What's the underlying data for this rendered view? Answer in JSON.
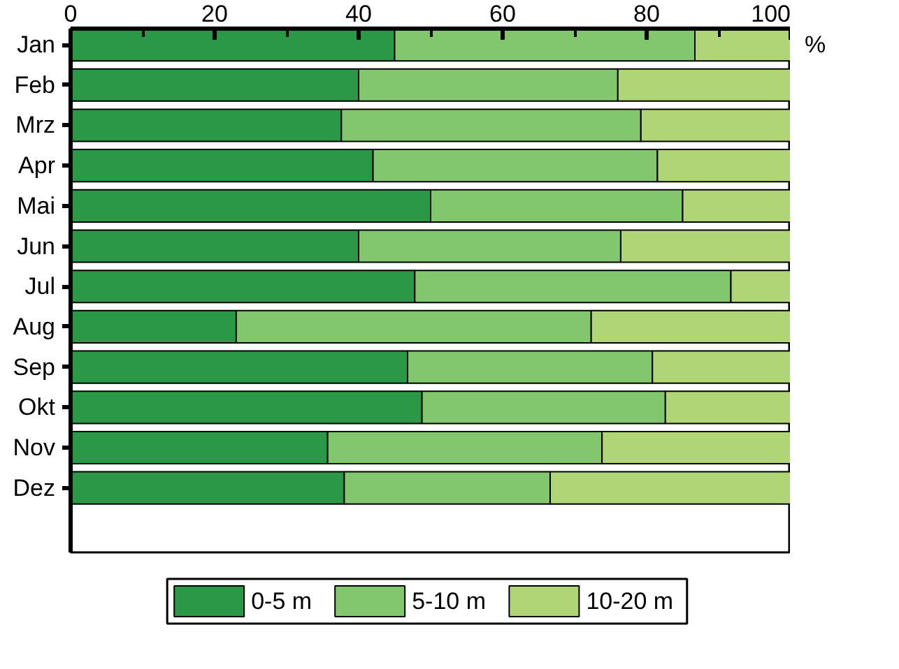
{
  "chart_data": {
    "type": "bar",
    "orientation": "horizontal",
    "stacked": true,
    "xlabel": "%",
    "categories": [
      "Jan",
      "Feb",
      "Mrz",
      "Apr",
      "Mai",
      "Jun",
      "Jul",
      "Aug",
      "Sep",
      "Okt",
      "Nov",
      "Dez"
    ],
    "series": [
      {
        "name": "0-5 m",
        "color": "#2a9846",
        "values": [
          45,
          40,
          37.6,
          42,
          50,
          40,
          47.8,
          23,
          46.8,
          48.8,
          35.7,
          38
        ]
      },
      {
        "name": "5-10 m",
        "color": "#82c76e",
        "values": [
          41.7,
          36,
          41.6,
          39.5,
          35,
          36.4,
          43.9,
          49.3,
          34,
          33.8,
          38.1,
          28.6
        ]
      },
      {
        "name": "10-20 m",
        "color": "#b0d576",
        "values": [
          13.3,
          24,
          20.8,
          18.5,
          15,
          23.6,
          8.3,
          27.7,
          19.2,
          17.4,
          26.2,
          33.4
        ]
      }
    ],
    "xlim": [
      0,
      100
    ],
    "xticks": [
      0,
      20,
      40,
      60,
      80,
      100
    ],
    "grid": false,
    "legend": "bottom"
  }
}
